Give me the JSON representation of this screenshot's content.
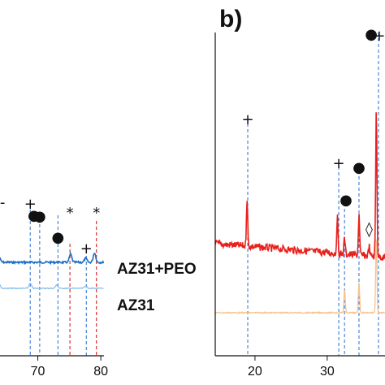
{
  "figure": {
    "panel_label": "b)"
  },
  "chart_data": [
    {
      "type": "line",
      "panel": "a",
      "title": "",
      "xlabel": "",
      "ylabel": "",
      "xlim": [
        64,
        80.5
      ],
      "x_ticks": [
        70,
        80
      ],
      "grid": false,
      "series": [
        {
          "name": "AZ31+PEO",
          "color": "#1b6fc4",
          "peaks": [
            {
              "x": 63.8,
              "h": 10
            },
            {
              "x": 75.2,
              "h": 10
            },
            {
              "x": 77.6,
              "h": 5
            },
            {
              "x": 79.0,
              "h": 12
            }
          ]
        },
        {
          "name": "AZ31",
          "color": "#8cc0ea",
          "peaks": [
            {
              "x": 63.8,
              "h": 8
            },
            {
              "x": 68.8,
              "h": 6
            },
            {
              "x": 73.0,
              "h": 4
            },
            {
              "x": 77.6,
              "h": 3
            }
          ]
        }
      ],
      "reference_lines": [
        {
          "x": 68.8,
          "color": "blue",
          "marker": "+"
        },
        {
          "x": 70.3,
          "color": "blue",
          "marker": "●"
        },
        {
          "x": 73.2,
          "color": "blue",
          "marker": "●"
        },
        {
          "x": 75.1,
          "color": "red",
          "marker": "*"
        },
        {
          "x": 77.7,
          "color": "blue",
          "marker": "+"
        },
        {
          "x": 79.3,
          "color": "red",
          "marker": "*"
        }
      ],
      "markers": [
        {
          "symbol": "-",
          "x": 64.4
        },
        {
          "symbol": "+",
          "x": 68.8
        },
        {
          "symbol": "●",
          "x": 69.4
        },
        {
          "symbol": "●",
          "x": 70.3
        },
        {
          "symbol": "●",
          "x": 73.2
        },
        {
          "symbol": "*",
          "x": 75.1
        },
        {
          "symbol": "+",
          "x": 77.7
        },
        {
          "symbol": "*",
          "x": 79.3
        }
      ]
    },
    {
      "type": "line",
      "panel": "b",
      "title": "b)",
      "xlabel": "",
      "ylabel": "",
      "xlim": [
        14.5,
        38
      ],
      "x_ticks": [
        20,
        30
      ],
      "grid": false,
      "series": [
        {
          "name": "",
          "color": "#e8201c",
          "peaks": [
            {
              "x": 18.9,
              "h": 60
            },
            {
              "x": 31.4,
              "h": 45
            },
            {
              "x": 32.4,
              "h": 20
            },
            {
              "x": 34.4,
              "h": 50
            },
            {
              "x": 35.8,
              "h": 12
            },
            {
              "x": 36.8,
              "h": 185
            }
          ]
        },
        {
          "name": "",
          "color": "#f7c18a",
          "peaks": [
            {
              "x": 32.4,
              "h": 30
            },
            {
              "x": 34.4,
              "h": 38
            },
            {
              "x": 36.8,
              "h": 95
            }
          ]
        }
      ],
      "reference_lines": [
        {
          "x": 19.0,
          "color": "blue",
          "marker": "+"
        },
        {
          "x": 31.6,
          "color": "blue",
          "marker": "+"
        },
        {
          "x": 32.4,
          "color": "blue",
          "marker": "●"
        },
        {
          "x": 34.4,
          "color": "blue",
          "marker": "●"
        },
        {
          "x": 37.1,
          "color": "blue",
          "marker": "●+"
        }
      ],
      "markers": [
        {
          "symbol": "+",
          "x": 19.0
        },
        {
          "symbol": "+",
          "x": 31.6
        },
        {
          "symbol": "●",
          "x": 32.6
        },
        {
          "symbol": "●",
          "x": 34.4
        },
        {
          "symbol": "◊",
          "x": 35.8
        },
        {
          "symbol": "●",
          "x": 36.1
        },
        {
          "symbol": "+",
          "x": 37.2
        }
      ]
    }
  ]
}
